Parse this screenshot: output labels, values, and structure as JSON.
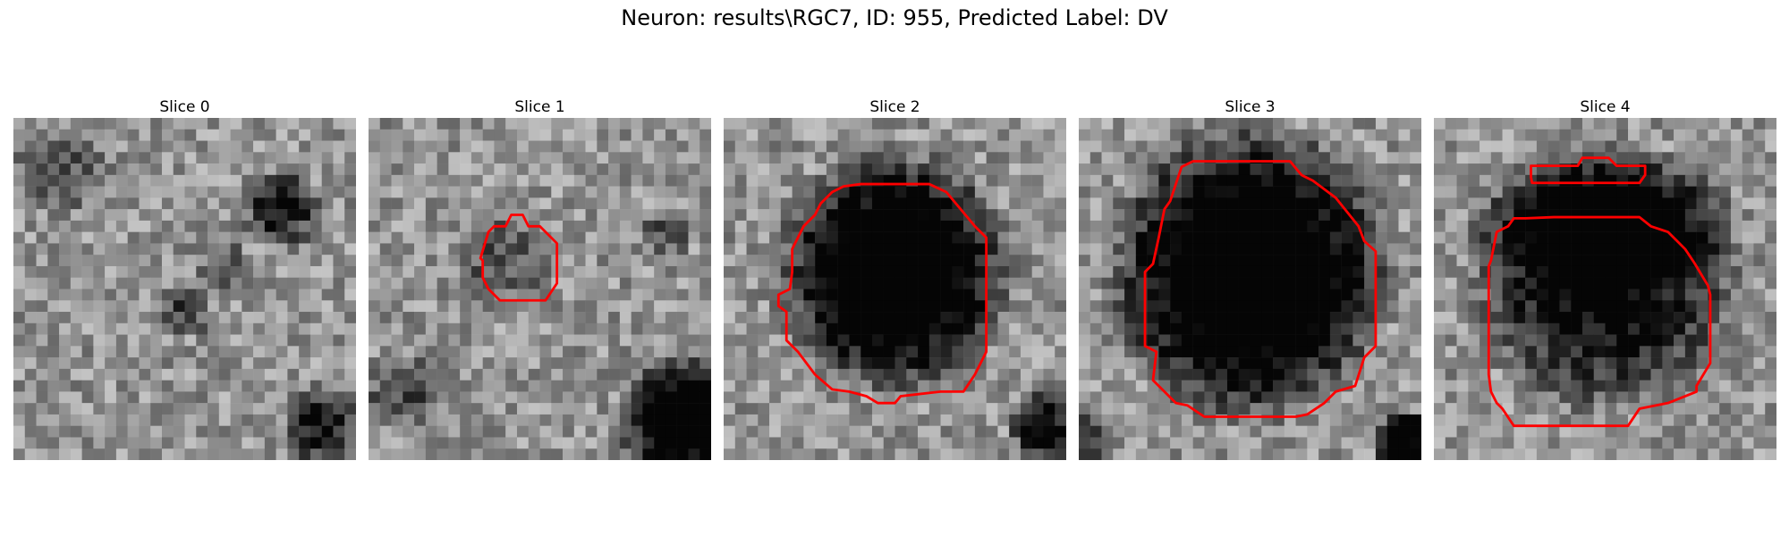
{
  "figure": {
    "title": "Neuron: results\\RGC7, ID: 955, Predicted Label: DV",
    "outline_color": "#ff0000",
    "colormap": "grayscale"
  },
  "panels": [
    {
      "title": "Slice 0",
      "has_outline": false
    },
    {
      "title": "Slice 1",
      "has_outline": true
    },
    {
      "title": "Slice 2",
      "has_outline": true
    },
    {
      "title": "Slice 3",
      "has_outline": true
    },
    {
      "title": "Slice 4",
      "has_outline": true
    }
  ]
}
